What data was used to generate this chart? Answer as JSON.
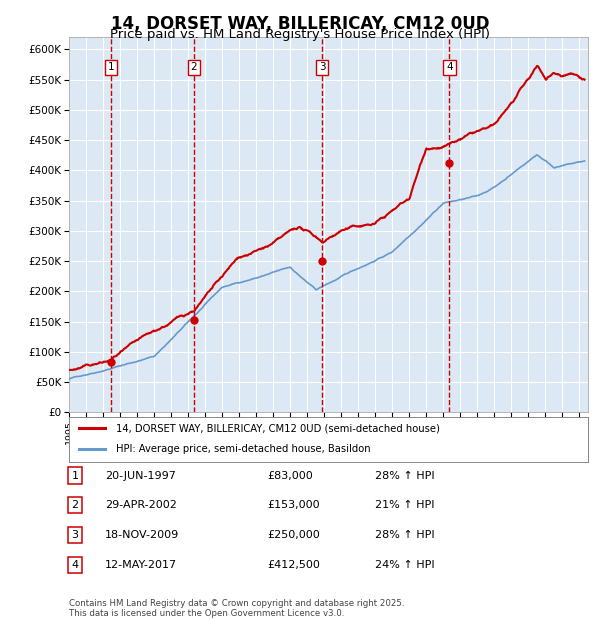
{
  "title": "14, DORSET WAY, BILLERICAY, CM12 0UD",
  "subtitle": "Price paid vs. HM Land Registry's House Price Index (HPI)",
  "footer": "Contains HM Land Registry data © Crown copyright and database right 2025.\nThis data is licensed under the Open Government Licence v3.0.",
  "legend_line1": "14, DORSET WAY, BILLERICAY, CM12 0UD (semi-detached house)",
  "legend_line2": "HPI: Average price, semi-detached house, Basildon",
  "transactions": [
    {
      "num": 1,
      "date": "20-JUN-1997",
      "price": 83000,
      "pct": "28%",
      "year": 1997.47
    },
    {
      "num": 2,
      "date": "29-APR-2002",
      "price": 153000,
      "pct": "21%",
      "year": 2002.33
    },
    {
      "num": 3,
      "date": "18-NOV-2009",
      "price": 250000,
      "pct": "28%",
      "year": 2009.88
    },
    {
      "num": 4,
      "date": "12-MAY-2017",
      "price": 412500,
      "pct": "24%",
      "year": 2017.36
    }
  ],
  "ylim": [
    0,
    620000
  ],
  "yticks": [
    0,
    50000,
    100000,
    150000,
    200000,
    250000,
    300000,
    350000,
    400000,
    450000,
    500000,
    550000,
    600000
  ],
  "xlim_start": 1995.0,
  "xlim_end": 2025.5,
  "plot_bg": "#dce9f5",
  "grid_color": "#ffffff",
  "red_line_color": "#cc0000",
  "blue_line_color": "#6699cc",
  "dashed_line_color": "#cc0000",
  "title_fontsize": 12,
  "subtitle_fontsize": 9.5
}
